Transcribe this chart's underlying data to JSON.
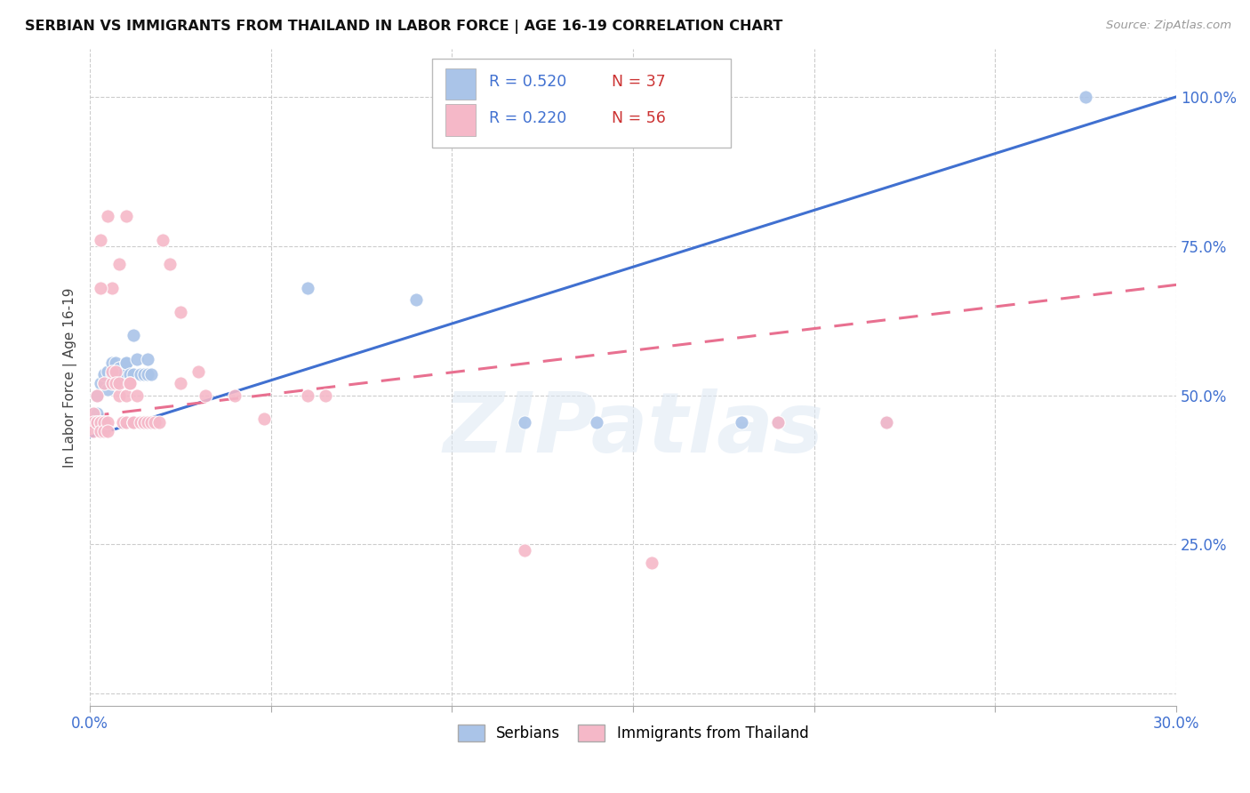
{
  "title": "SERBIAN VS IMMIGRANTS FROM THAILAND IN LABOR FORCE | AGE 16-19 CORRELATION CHART",
  "source": "Source: ZipAtlas.com",
  "ylabel": "In Labor Force | Age 16-19",
  "xlim": [
    0.0,
    0.3
  ],
  "ylim": [
    -0.02,
    1.08
  ],
  "yticks": [
    0.0,
    0.25,
    0.5,
    0.75,
    1.0
  ],
  "ytick_labels": [
    "",
    "25.0%",
    "50.0%",
    "75.0%",
    "100.0%"
  ],
  "xticks": [
    0.0,
    0.05,
    0.1,
    0.15,
    0.2,
    0.25,
    0.3
  ],
  "xtick_labels": [
    "0.0%",
    "",
    "",
    "",
    "",
    "",
    "30.0%"
  ],
  "blue_color": "#aac4e8",
  "pink_color": "#f5b8c8",
  "blue_line_color": "#4070d0",
  "pink_line_color": "#e87090",
  "legend_R_blue": "R = 0.520",
  "legend_N_blue": "N = 37",
  "legend_R_pink": "R = 0.220",
  "legend_N_pink": "N = 56",
  "watermark": "ZIPatlas",
  "blue_trend_x": [
    0.0,
    0.3
  ],
  "blue_trend_y": [
    0.43,
    1.0
  ],
  "pink_trend_x": [
    0.0,
    0.3
  ],
  "pink_trend_y": [
    0.465,
    0.685
  ],
  "serbians": [
    [
      0.001,
      0.455
    ],
    [
      0.001,
      0.47
    ],
    [
      0.001,
      0.46
    ],
    [
      0.002,
      0.47
    ],
    [
      0.002,
      0.5
    ],
    [
      0.003,
      0.455
    ],
    [
      0.003,
      0.52
    ],
    [
      0.004,
      0.52
    ],
    [
      0.004,
      0.535
    ],
    [
      0.005,
      0.51
    ],
    [
      0.005,
      0.54
    ],
    [
      0.006,
      0.555
    ],
    [
      0.006,
      0.535
    ],
    [
      0.007,
      0.555
    ],
    [
      0.007,
      0.535
    ],
    [
      0.008,
      0.53
    ],
    [
      0.008,
      0.545
    ],
    [
      0.009,
      0.535
    ],
    [
      0.01,
      0.555
    ],
    [
      0.01,
      0.555
    ],
    [
      0.011,
      0.535
    ],
    [
      0.012,
      0.6
    ],
    [
      0.012,
      0.535
    ],
    [
      0.013,
      0.56
    ],
    [
      0.014,
      0.535
    ],
    [
      0.015,
      0.535
    ],
    [
      0.016,
      0.56
    ],
    [
      0.016,
      0.535
    ],
    [
      0.017,
      0.535
    ],
    [
      0.06,
      0.68
    ],
    [
      0.09,
      0.66
    ],
    [
      0.12,
      0.455
    ],
    [
      0.14,
      0.455
    ],
    [
      0.18,
      0.455
    ],
    [
      0.22,
      0.455
    ],
    [
      0.19,
      0.455
    ],
    [
      0.275,
      1.0
    ]
  ],
  "thailand": [
    [
      0.001,
      0.455
    ],
    [
      0.001,
      0.47
    ],
    [
      0.001,
      0.455
    ],
    [
      0.001,
      0.44
    ],
    [
      0.002,
      0.455
    ],
    [
      0.002,
      0.455
    ],
    [
      0.002,
      0.5
    ],
    [
      0.003,
      0.455
    ],
    [
      0.003,
      0.455
    ],
    [
      0.003,
      0.44
    ],
    [
      0.004,
      0.455
    ],
    [
      0.004,
      0.44
    ],
    [
      0.004,
      0.52
    ],
    [
      0.005,
      0.455
    ],
    [
      0.005,
      0.44
    ],
    [
      0.006,
      0.52
    ],
    [
      0.006,
      0.54
    ],
    [
      0.007,
      0.54
    ],
    [
      0.007,
      0.52
    ],
    [
      0.008,
      0.5
    ],
    [
      0.008,
      0.52
    ],
    [
      0.009,
      0.455
    ],
    [
      0.01,
      0.455
    ],
    [
      0.01,
      0.5
    ],
    [
      0.011,
      0.52
    ],
    [
      0.011,
      0.52
    ],
    [
      0.012,
      0.455
    ],
    [
      0.012,
      0.455
    ],
    [
      0.013,
      0.5
    ],
    [
      0.014,
      0.455
    ],
    [
      0.015,
      0.455
    ],
    [
      0.015,
      0.455
    ],
    [
      0.016,
      0.455
    ],
    [
      0.017,
      0.455
    ],
    [
      0.018,
      0.455
    ],
    [
      0.019,
      0.455
    ],
    [
      0.02,
      0.76
    ],
    [
      0.022,
      0.72
    ],
    [
      0.025,
      0.64
    ],
    [
      0.025,
      0.52
    ],
    [
      0.03,
      0.54
    ],
    [
      0.032,
      0.5
    ],
    [
      0.04,
      0.5
    ],
    [
      0.048,
      0.46
    ],
    [
      0.06,
      0.5
    ],
    [
      0.065,
      0.5
    ],
    [
      0.005,
      0.8
    ],
    [
      0.008,
      0.72
    ],
    [
      0.01,
      0.8
    ],
    [
      0.006,
      0.68
    ],
    [
      0.003,
      0.68
    ],
    [
      0.003,
      0.76
    ],
    [
      0.12,
      0.24
    ],
    [
      0.155,
      0.22
    ],
    [
      0.19,
      0.455
    ],
    [
      0.22,
      0.455
    ]
  ]
}
